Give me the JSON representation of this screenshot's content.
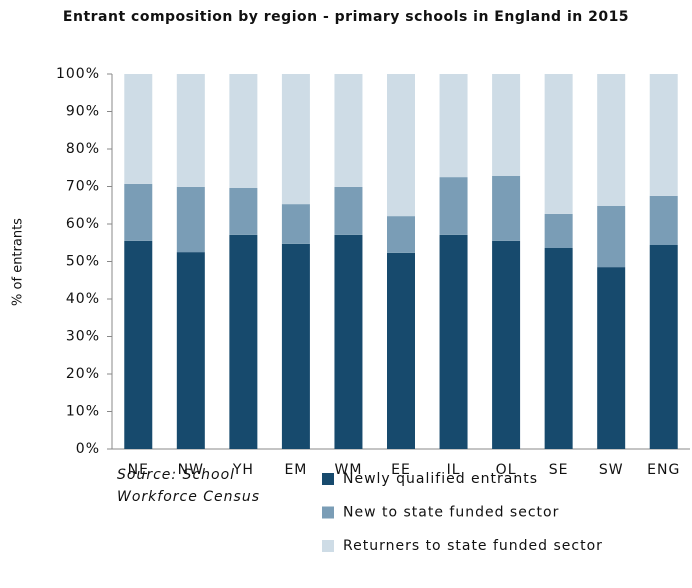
{
  "chart_data": {
    "type": "stacked_bar",
    "title": "Entrant composition by region - primary schools in England in 2015",
    "y_label": "% of entrants",
    "source": "Source: School Workforce Census",
    "categories": [
      "NE",
      "NW",
      "YH",
      "EM",
      "WM",
      "EE",
      "IL",
      "OL",
      "SE",
      "SW",
      "ENG"
    ],
    "series": [
      {
        "name": "Newly qualified entrants",
        "color": "#174a6d",
        "values": [
          55.5,
          52.5,
          57.1,
          54.7,
          57.1,
          52.3,
          57.1,
          55.5,
          53.6,
          48.5,
          54.4
        ]
      },
      {
        "name": "New to state funded sector",
        "color": "#7a9db6",
        "values": [
          15.2,
          17.4,
          12.5,
          10.6,
          12.8,
          9.8,
          15.4,
          17.3,
          9.1,
          16.3,
          13.1
        ]
      },
      {
        "name": "Returners to state funded sector",
        "color": "#cedce6",
        "values": [
          29.3,
          30.1,
          30.4,
          34.7,
          30.1,
          37.9,
          27.5,
          27.2,
          37.3,
          35.2,
          32.5
        ]
      }
    ],
    "ylim": [
      0,
      100
    ],
    "yticks": [
      {
        "value": 0,
        "label": "0%"
      },
      {
        "value": 10,
        "label": "10%"
      },
      {
        "value": 20,
        "label": "20%"
      },
      {
        "value": 30,
        "label": "30%"
      },
      {
        "value": 40,
        "label": "40%"
      },
      {
        "value": 50,
        "label": "50%"
      },
      {
        "value": 60,
        "label": "60%"
      },
      {
        "value": 70,
        "label": "70%"
      },
      {
        "value": 80,
        "label": "80%"
      },
      {
        "value": 90,
        "label": "90%"
      },
      {
        "value": 100,
        "label": "100%"
      }
    ]
  }
}
